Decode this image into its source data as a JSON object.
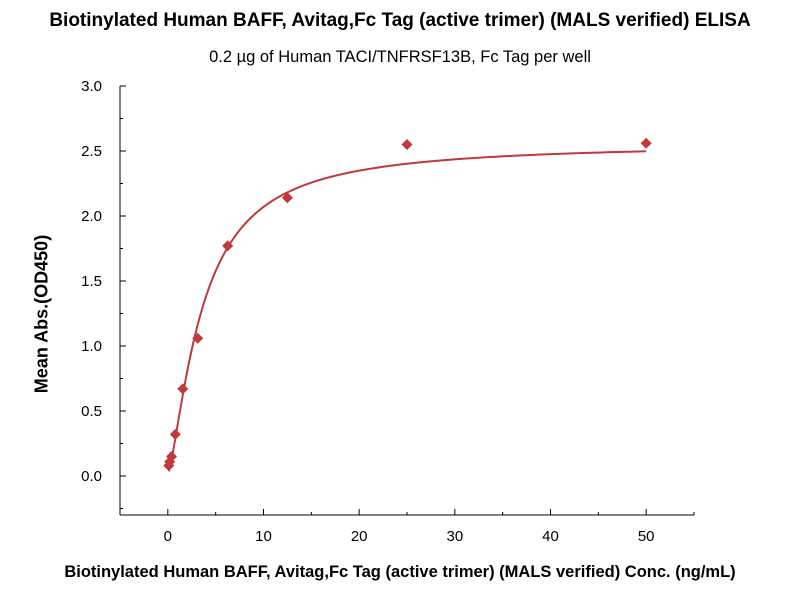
{
  "chart_data": {
    "type": "scatter",
    "title": "Biotinylated Human BAFF, Avitag,Fc Tag (active trimer) (MALS verified) ELISA",
    "subtitle": "0.2 µg of Human TACI/TNFRSF13B, Fc Tag per well",
    "xlabel": "Biotinylated Human BAFF, Avitag,Fc Tag (active trimer) (MALS verified) Conc. (ng/mL)",
    "ylabel": "Mean Abs.(OD450)",
    "xlim": [
      -5,
      55
    ],
    "ylim": [
      -0.3,
      3.0
    ],
    "x_ticks": [
      0,
      10,
      20,
      30,
      40,
      50
    ],
    "y_ticks": [
      0.0,
      0.5,
      1.0,
      1.5,
      2.0,
      2.5,
      3.0
    ],
    "x_tick_labels": [
      "0",
      "10",
      "20",
      "30",
      "40",
      "50"
    ],
    "y_tick_labels": [
      "0.0",
      "0.5",
      "1.0",
      "1.5",
      "2.0",
      "2.5",
      "3.0"
    ],
    "grid": false,
    "series": [
      {
        "marker": "diamond",
        "color": "#c0393b",
        "x": [
          0.098,
          0.195,
          0.39,
          0.781,
          1.563,
          3.125,
          6.25,
          12.5,
          25,
          50
        ],
        "y": [
          0.08,
          0.11,
          0.15,
          0.32,
          0.67,
          1.06,
          1.77,
          2.14,
          2.55,
          2.56
        ],
        "fit": {
          "type": "4PL",
          "bottom": 0.02,
          "top": 2.56,
          "ec50": 3.6,
          "hill": 1.4,
          "color": "#c0393b"
        }
      }
    ]
  }
}
